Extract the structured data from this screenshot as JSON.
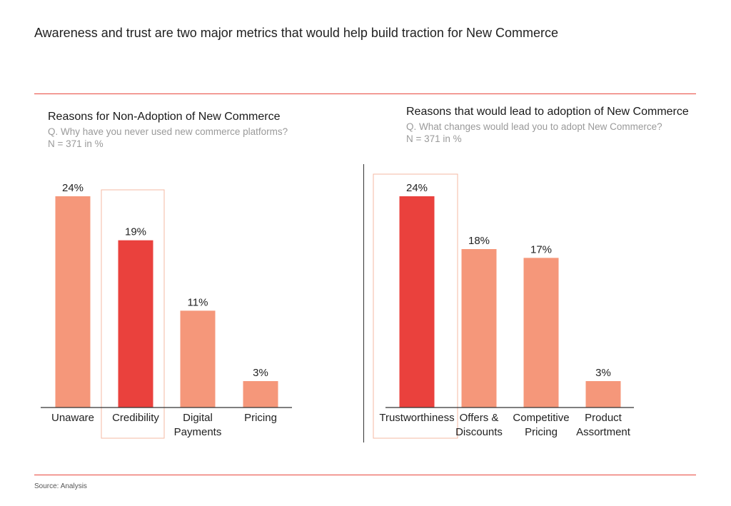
{
  "headline": "Awareness and trust are two major metrics that would help build traction for New Commerce",
  "left": {
    "title": "Reasons for Non-Adoption of New Commerce",
    "question": "Q. Why have you never used new commerce platforms?",
    "base": "N = 371  in %"
  },
  "right": {
    "title": "Reasons that would lead to adoption of New Commerce",
    "question": "Q. What changes would lead you to adopt New Commerce?",
    "base": "N = 371  in %"
  },
  "source": "Source: Analysis",
  "colors": {
    "bar": "#f5977a",
    "highlight": "#ea413d",
    "rule": "#e8483f",
    "box": "#f5b9a3"
  },
  "chart_data": [
    {
      "type": "bar",
      "title": "Reasons for Non-Adoption of New Commerce",
      "categories": [
        [
          "Unaware"
        ],
        [
          "Credibility"
        ],
        [
          "Digital",
          "Payments"
        ],
        [
          "Pricing"
        ]
      ],
      "values": [
        24,
        19,
        11,
        3
      ],
      "value_labels": [
        "24%",
        "19%",
        "11%",
        "3%"
      ],
      "highlight_index": 1,
      "ylim": [
        0,
        24
      ],
      "grid": false
    },
    {
      "type": "bar",
      "title": "Reasons that would lead to adoption of New Commerce",
      "categories": [
        [
          "Trustworthiness"
        ],
        [
          "Offers &",
          "Discounts"
        ],
        [
          "Competitive",
          "Pricing"
        ],
        [
          "Product",
          "Assortment"
        ]
      ],
      "values": [
        24,
        18,
        17,
        3
      ],
      "value_labels": [
        "24%",
        "18%",
        "17%",
        "3%"
      ],
      "highlight_index": 0,
      "ylim": [
        0,
        24
      ],
      "grid": false
    }
  ]
}
